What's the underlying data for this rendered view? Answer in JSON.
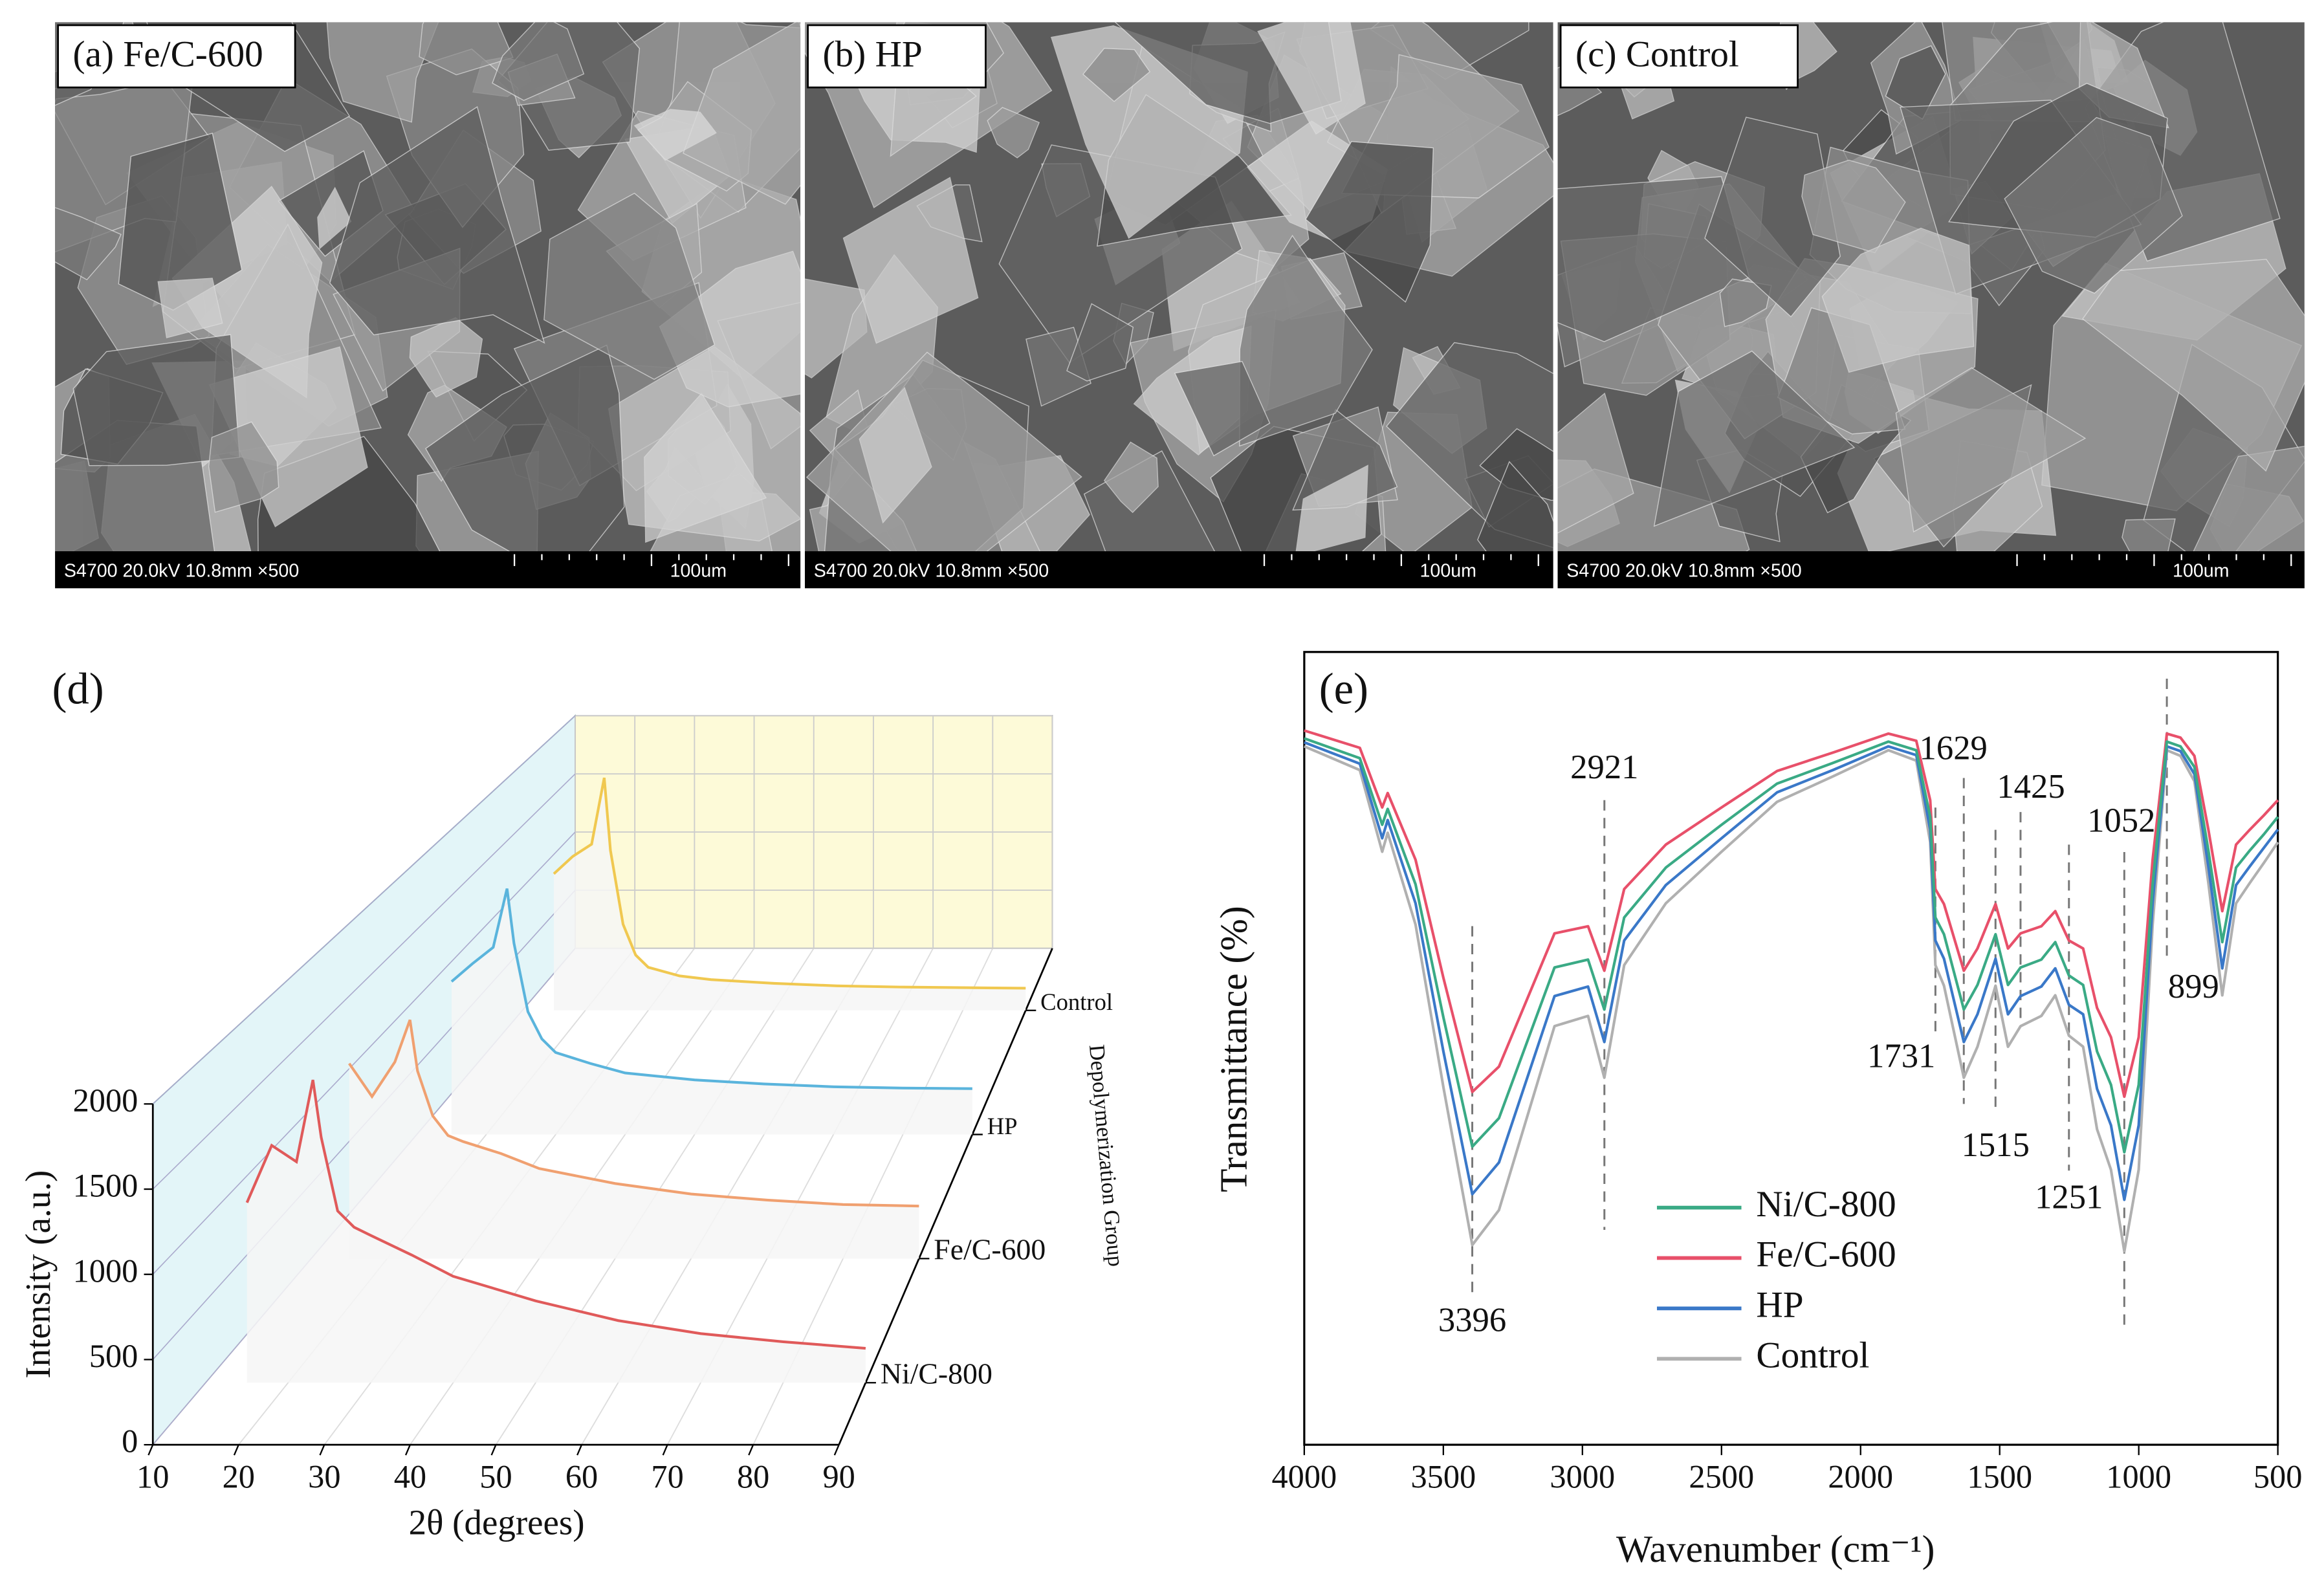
{
  "panels": [
    {
      "label": "(a) Fe/C-600",
      "info": "S4700 20.0kV 10.8mm ×500",
      "scale": "100um"
    },
    {
      "label": "(b) HP",
      "info": "S4700 20.0kV 10.8mm ×500",
      "scale": "100um"
    },
    {
      "label": "(c) Control",
      "info": "S4700 20.0kV 10.8mm ×500",
      "scale": "100um"
    }
  ],
  "chart_data": [
    {
      "type": "line3d",
      "panel_label": "(d)",
      "xlabel": "2θ (degrees)",
      "ylabel": "Intensity (a.u.)",
      "zlabel": "Depolymerization Group",
      "xlim": [
        10,
        90
      ],
      "xticks": [
        10,
        20,
        30,
        40,
        50,
        60,
        70,
        80,
        90
      ],
      "ylim": [
        0,
        2000
      ],
      "yticks": [
        0,
        500,
        1000,
        1500,
        2000
      ],
      "grid": true,
      "x": [
        15,
        18,
        21,
        23,
        24,
        26,
        28,
        30,
        35,
        40,
        50,
        60,
        70,
        80,
        90
      ],
      "series": [
        {
          "name": "Ni/C-800",
          "color": "#e05a5a",
          "values": [
            1100,
            1450,
            1350,
            1850,
            1500,
            1050,
            950,
            900,
            780,
            650,
            500,
            380,
            300,
            250,
            210
          ]
        },
        {
          "name": "Fe/C-600",
          "color": "#f0a070",
          "values": [
            1300,
            1080,
            1310,
            1590,
            1250,
            950,
            820,
            780,
            700,
            600,
            500,
            430,
            390,
            360,
            350
          ]
        },
        {
          "name": "HP",
          "color": "#5ab4dc",
          "values": [
            1120,
            1250,
            1370,
            1800,
            1400,
            900,
            700,
            600,
            520,
            450,
            400,
            370,
            350,
            340,
            336
          ]
        },
        {
          "name": "Control",
          "color": "#f0c850",
          "values": [
            1110,
            1250,
            1350,
            1890,
            1300,
            700,
            450,
            350,
            280,
            250,
            220,
            200,
            190,
            185,
            180
          ]
        }
      ]
    },
    {
      "type": "line",
      "panel_label": "(e)",
      "xlabel": "Wavenumber (cm⁻¹)",
      "ylabel": "Transmittance (%)",
      "xlim": [
        4000,
        500
      ],
      "xticks": [
        4000,
        3500,
        3000,
        2500,
        2000,
        1500,
        1000,
        500
      ],
      "ylim": [
        0,
        100
      ],
      "annotations": [
        3396,
        2921,
        1731,
        1629,
        1515,
        1425,
        1251,
        1052,
        899
      ],
      "x": [
        4000,
        3800,
        3720,
        3700,
        3600,
        3500,
        3396,
        3300,
        3100,
        2980,
        2921,
        2850,
        2700,
        2500,
        2300,
        2100,
        1900,
        1800,
        1750,
        1731,
        1700,
        1629,
        1580,
        1515,
        1470,
        1425,
        1350,
        1300,
        1251,
        1200,
        1150,
        1100,
        1052,
        1000,
        950,
        899,
        850,
        800,
        750,
        700,
        650,
        600,
        550,
        500
      ],
      "series": [
        {
          "name": "Ni/C-800",
          "color": "#3aaa85",
          "values": [
            89.1,
            86.6,
            78.2,
            80.2,
            70.7,
            53.9,
            37.6,
            41.2,
            60.2,
            61.2,
            54.9,
            66.5,
            72.8,
            78.2,
            83.4,
            86,
            88.7,
            87.6,
            79.2,
            66.5,
            64.4,
            54.9,
            58,
            64.4,
            58,
            60.2,
            61.2,
            63.4,
            59.2,
            58,
            49.6,
            45.4,
            36.9,
            45.4,
            70.7,
            88.7,
            88.1,
            85.5,
            75,
            63.4,
            72.8,
            75,
            77,
            79.2
          ]
        },
        {
          "name": "Fe/C-600",
          "color": "#e8506a",
          "values": [
            90.1,
            87.9,
            80.4,
            82.2,
            73.8,
            58.9,
            44.5,
            47.7,
            64.5,
            65.4,
            59.8,
            70.1,
            75.7,
            80.4,
            85,
            87.3,
            89.7,
            88.8,
            81.3,
            70.1,
            68.2,
            59.8,
            62.6,
            68.2,
            62.6,
            64.5,
            65.4,
            67.3,
            63.6,
            62.6,
            55.1,
            51.4,
            43.9,
            51.4,
            73.8,
            89.7,
            89.2,
            86.9,
            77.6,
            67.3,
            75.7,
            77.6,
            79.4,
            81.3
          ]
        },
        {
          "name": "HP",
          "color": "#3a78c8",
          "values": [
            88.6,
            85.9,
            76.5,
            78.8,
            68.3,
            49.6,
            31.6,
            35.6,
            56.6,
            57.8,
            50.8,
            63.6,
            70.6,
            76.5,
            82.3,
            85.1,
            88.1,
            87,
            77.6,
            63.6,
            61.3,
            50.8,
            54.3,
            61.3,
            54.3,
            56.6,
            57.8,
            60.1,
            55.5,
            54.3,
            44.9,
            40.3,
            30.9,
            40.3,
            68.3,
            88.1,
            87.5,
            84.6,
            73,
            60.1,
            70.6,
            73,
            75.3,
            77.6
          ]
        },
        {
          "name": "Control",
          "color": "#b0b0b0",
          "values": [
            88.1,
            85.1,
            74.8,
            77.2,
            65.6,
            45.1,
            25.2,
            29.6,
            52.8,
            54.1,
            46.3,
            60.5,
            68.3,
            74.8,
            81.1,
            84.3,
            87.6,
            86.3,
            76,
            60.5,
            57.9,
            46.3,
            50.2,
            57.9,
            50.2,
            52.8,
            54.1,
            56.7,
            51.6,
            50.2,
            39.8,
            34.7,
            24.4,
            34.7,
            65.6,
            87.6,
            86.9,
            83.7,
            70.9,
            56.7,
            68.3,
            70.9,
            73.4,
            76
          ]
        }
      ]
    }
  ]
}
